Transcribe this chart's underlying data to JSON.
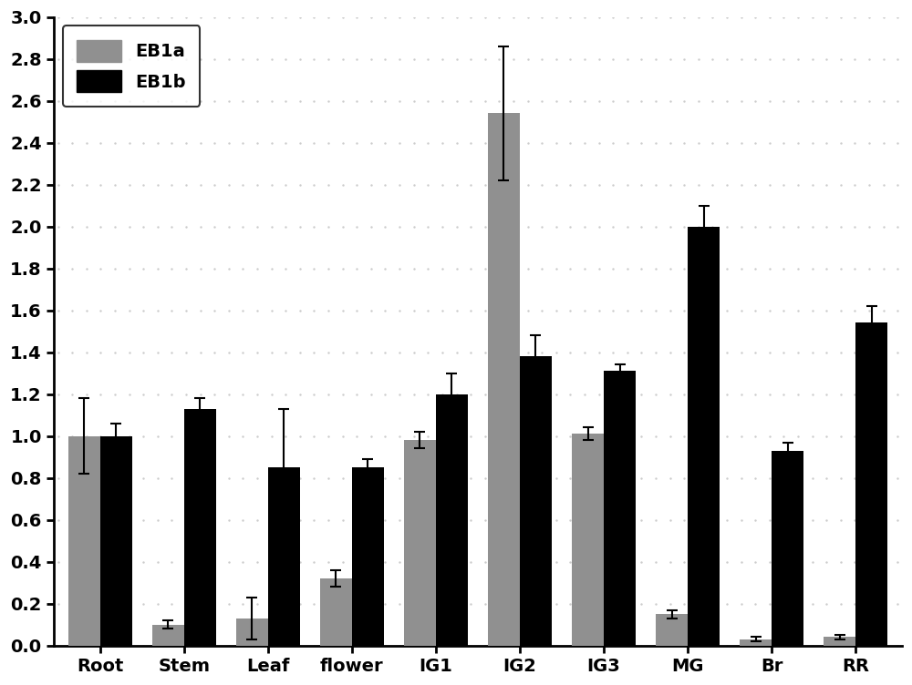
{
  "categories": [
    "Root",
    "Stem",
    "Leaf",
    "flower",
    "IG1",
    "IG2",
    "IG3",
    "MG",
    "Br",
    "RR"
  ],
  "eb1a_values": [
    1.0,
    0.1,
    0.13,
    0.32,
    0.98,
    2.54,
    1.01,
    0.15,
    0.03,
    0.04
  ],
  "eb1b_values": [
    1.0,
    1.13,
    0.85,
    0.85,
    1.2,
    1.38,
    1.31,
    2.0,
    0.93,
    1.54
  ],
  "eb1a_errors": [
    0.18,
    0.02,
    0.1,
    0.04,
    0.04,
    0.32,
    0.03,
    0.02,
    0.01,
    0.01
  ],
  "eb1b_errors": [
    0.06,
    0.05,
    0.28,
    0.04,
    0.1,
    0.1,
    0.03,
    0.1,
    0.04,
    0.08
  ],
  "eb1a_color": "#909090",
  "eb1b_color": "#000000",
  "ylim": [
    0,
    3.0
  ],
  "yticks": [
    0.0,
    0.2,
    0.4,
    0.6,
    0.8,
    1.0,
    1.2,
    1.4,
    1.6,
    1.8,
    2.0,
    2.2,
    2.4,
    2.6,
    2.8,
    3.0
  ],
  "legend_labels": [
    "EB1a",
    "EB1b"
  ],
  "background_color": "#ffffff",
  "bar_width": 0.38,
  "figsize": [
    10.0,
    7.52
  ],
  "dpi": 100
}
